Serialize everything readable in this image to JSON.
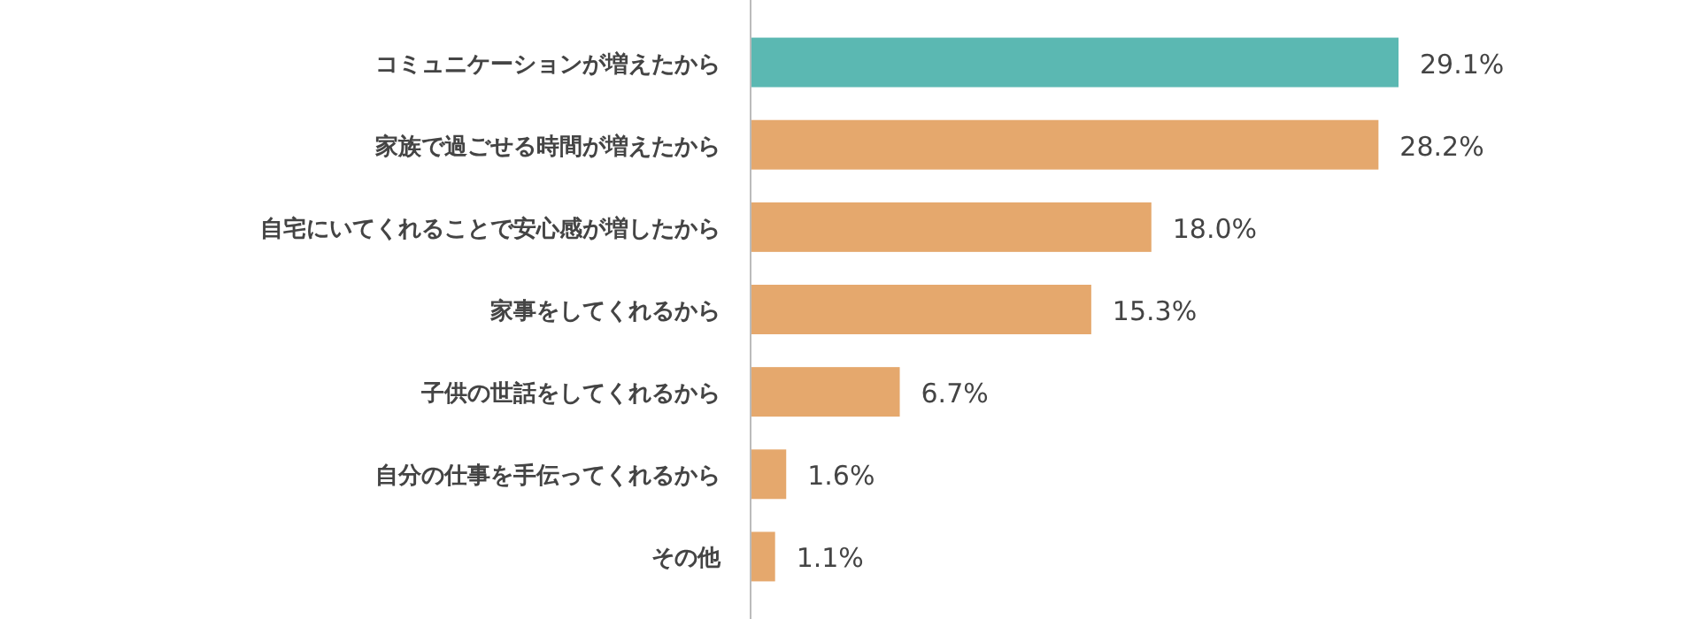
{
  "chart_data": {
    "type": "bar",
    "orientation": "horizontal",
    "categories": [
      "コミュニケーションが増えたから",
      "家族で過ごせる時間が増えたから",
      "自宅にいてくれることで安心感が増したから",
      "家事をしてくれるから",
      "子供の世話をしてくれるから",
      "自分の仕事を手伝ってくれるから",
      "その他"
    ],
    "values": [
      29.1,
      28.2,
      18.0,
      15.3,
      6.7,
      1.6,
      1.1
    ],
    "value_labels": [
      "29.1%",
      "28.2%",
      "18.0%",
      "15.3%",
      "6.7%",
      "1.6%",
      "1.1%"
    ],
    "colors": [
      "#5bb8b2",
      "#e5a86d",
      "#e5a86d",
      "#e5a86d",
      "#e5a86d",
      "#e5a86d",
      "#e5a86d"
    ]
  }
}
